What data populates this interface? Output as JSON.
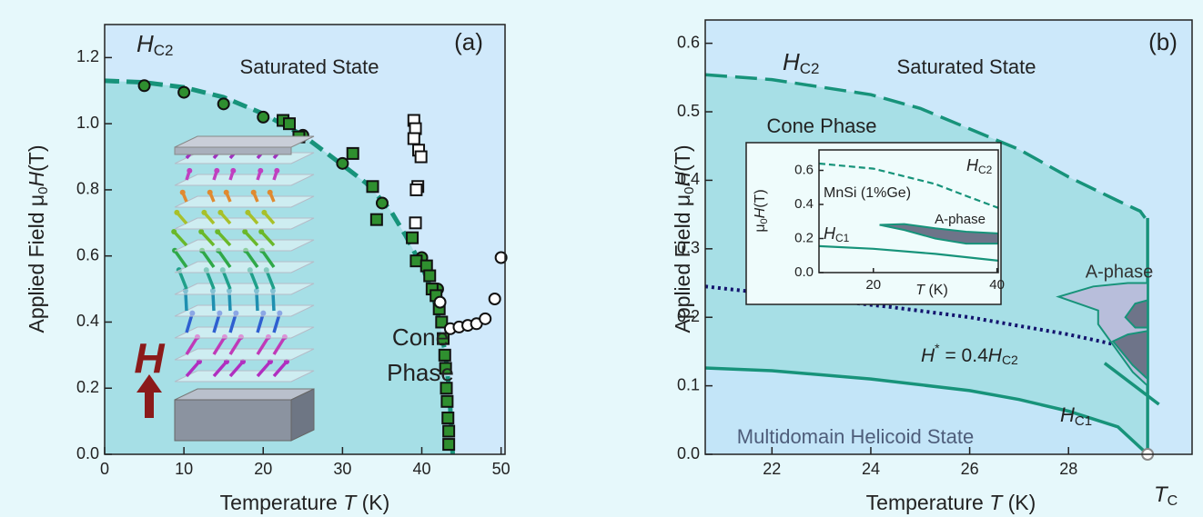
{
  "chart_data": [
    {
      "type": "scatter",
      "panel_label": "(a)",
      "background": "#d0e9fb",
      "x_label": {
        "text": "Temperature ",
        "var": "T",
        "unit": " (K)"
      },
      "y_label": {
        "text": "Applied Field μ",
        "sub": "0",
        "var": "H",
        "unit": "(T)"
      },
      "xlim": [
        0,
        50.5
      ],
      "ylim": [
        0,
        1.3
      ],
      "xticks": [
        0,
        10,
        20,
        30,
        40,
        50
      ],
      "yticks": [
        {
          "value": 0,
          "label": "0.0"
        },
        0.2,
        0.4,
        0.6,
        0.8,
        {
          "value": 1,
          "label": "1.0"
        },
        1.2
      ],
      "annotations": {
        "hc2": {
          "var": "H",
          "sub": "C2"
        },
        "saturated": "Saturated State",
        "cone_1": "Cone",
        "cone_2": "Phase",
        "field": "H"
      },
      "series": [
        {
          "type": "line",
          "style": "dashed",
          "color": "#17937a",
          "fill": "#a6dfe6",
          "x": [
            0,
            5,
            10,
            15,
            20,
            25,
            30,
            33,
            36,
            38,
            40,
            41,
            42,
            43,
            43.5,
            43.8,
            43.9
          ],
          "values": [
            1.13,
            1.125,
            1.11,
            1.08,
            1.03,
            0.965,
            0.875,
            0.82,
            0.74,
            0.66,
            0.57,
            0.51,
            0.43,
            0.3,
            0.18,
            0.05,
            0
          ]
        },
        {
          "type": "scatter",
          "marker": "circle",
          "color": "#2f8f2f",
          "x": [
            5,
            10,
            15,
            20,
            25,
            30,
            35,
            40,
            42
          ],
          "values": [
            1.115,
            1.095,
            1.06,
            1.02,
            0.965,
            0.88,
            0.76,
            0.595,
            0.5
          ]
        },
        {
          "type": "scatter",
          "marker": "square",
          "color": "#2f8f2f",
          "x": [
            22.5,
            23.3,
            24.5,
            31.3,
            33.8,
            34.3,
            38.8,
            39.3,
            40.6,
            41.0,
            41.3,
            41.8,
            42.2,
            42.5,
            42.7,
            42.9,
            43.0,
            43.1,
            43.2,
            43.3,
            43.4,
            43.4
          ],
          "values": [
            1.01,
            1.0,
            0.96,
            0.91,
            0.81,
            0.71,
            0.655,
            0.585,
            0.57,
            0.54,
            0.5,
            0.48,
            0.44,
            0.4,
            0.35,
            0.3,
            0.26,
            0.2,
            0.16,
            0.11,
            0.07,
            0.03
          ]
        },
        {
          "type": "scatter",
          "marker": "square",
          "color": "#ffffff",
          "x": [
            39.0,
            39.2,
            39.0,
            39.6,
            39.9,
            39.5,
            39.3,
            39.2
          ],
          "values": [
            1.01,
            0.985,
            0.955,
            0.92,
            0.9,
            0.81,
            0.8,
            0.7
          ]
        },
        {
          "type": "scatter",
          "marker": "circle",
          "color": "#ffffff",
          "x": [
            42.3,
            43.6,
            44.7,
            45.8,
            46.9,
            48.0,
            49.2,
            50.0
          ],
          "values": [
            0.46,
            0.38,
            0.385,
            0.39,
            0.395,
            0.41,
            0.47,
            0.595
          ]
        }
      ]
    },
    {
      "type": "line",
      "panel_label": "(b)",
      "background": "#cce8fa",
      "x_label": {
        "text": "Temperature ",
        "var": "T",
        "unit": " (K)"
      },
      "y_label": {
        "text": "Applied Field μ",
        "sub": "0",
        "var": "H",
        "unit": "(T)"
      },
      "xlim": [
        20.65,
        30.5
      ],
      "ylim": [
        0,
        0.634
      ],
      "xticks": [
        22,
        24,
        26,
        28
      ],
      "yticks": [
        {
          "value": 0,
          "label": "0.0"
        },
        0.1,
        0.2,
        0.3,
        0.4,
        0.5,
        0.6
      ],
      "annotations": {
        "hc2": {
          "var": "H",
          "sub": "C2"
        },
        "saturated": "Saturated State",
        "cone": "Cone Phase",
        "a_phase": "A-phase",
        "hstar": {
          "var": "H",
          "sup": "*",
          "eq": " = 0.4",
          "var2": "H",
          "sub": "C2"
        },
        "hc1": {
          "var": "H",
          "sub": "C1"
        },
        "multidomain": "Multidomain Helicoid State",
        "tc": {
          "var": "T",
          "sub": "C"
        }
      },
      "series": [
        {
          "type": "line",
          "style": "dashed",
          "color": "#17937a",
          "fill": "#a7dfe6",
          "x": [
            20.65,
            22,
            24,
            25,
            26,
            27,
            28,
            29,
            29.45,
            29.55
          ],
          "values": [
            0.554,
            0.547,
            0.525,
            0.505,
            0.475,
            0.445,
            0.405,
            0.37,
            0.355,
            0.345
          ]
        },
        {
          "type": "line",
          "style": "solid",
          "color": "#17937a",
          "fill": "#c3e5f8",
          "x": [
            20.65,
            22,
            24,
            26,
            27,
            28,
            29,
            29.6
          ],
          "values": [
            0.126,
            0.122,
            0.11,
            0.093,
            0.08,
            0.063,
            0.04,
            0
          ]
        },
        {
          "type": "line",
          "style": "solid",
          "color": "#17937a",
          "x": [
            29.6,
            29.6
          ],
          "values": [
            0.345,
            0
          ]
        },
        {
          "type": "line",
          "style": "dotted",
          "color": "#14146e",
          "x": [
            20.65,
            24.4,
            26,
            28,
            29.6
          ],
          "values": [
            0.245,
            0.215,
            0.2,
            0.175,
            0.15
          ]
        },
        {
          "type": "area",
          "color": "#17937a",
          "fill": "#b8bedb",
          "x": [
            27.8,
            28.5,
            29.2,
            29.6,
            29.6,
            29.3,
            28.9,
            28.6,
            28.6
          ],
          "values": [
            0.23,
            0.245,
            0.25,
            0.25,
            0.1,
            0.12,
            0.16,
            0.19,
            0.21
          ]
        },
        {
          "type": "area",
          "color": "#17937a",
          "fill": "#6e7489",
          "x": [
            29.15,
            29.35,
            29.6,
            29.6,
            29.35
          ],
          "values": [
            0.2,
            0.22,
            0.225,
            0.185,
            0.185
          ]
        },
        {
          "type": "area",
          "color": "#17937a",
          "fill": "#6e7489",
          "x": [
            28.9,
            29.2,
            29.6,
            29.6,
            29.3
          ],
          "values": [
            0.165,
            0.175,
            0.18,
            0.11,
            0.13
          ]
        },
        {
          "type": "line",
          "style": "solid",
          "color": "#17937a",
          "x": [
            28.73,
            29.83
          ],
          "values": [
            0.133,
            0.073
          ]
        },
        {
          "type": "scatter",
          "marker": "circle",
          "color": "#ffffff",
          "stroke": "#888888",
          "x": [
            29.6
          ],
          "values": [
            0
          ]
        }
      ]
    },
    {
      "type": "line",
      "inset": true,
      "background": "#effcfc",
      "x_label": {
        "var": "T",
        "unit": " (K)"
      },
      "y_label": {
        "text": "μ",
        "sub": "0",
        "var": "H",
        "unit": "(T)"
      },
      "xlim": [
        11.2,
        40.2
      ],
      "ylim": [
        0,
        0.72
      ],
      "xticks": [
        20,
        40
      ],
      "yticks": [
        {
          "value": 0,
          "label": "0.0"
        },
        0.2,
        0.4,
        0.6
      ],
      "annotations": {
        "material": "MnSi (1%Ge)",
        "hc2": {
          "var": "H",
          "sub": "C2"
        },
        "a_phase": "A-phase",
        "hc1": {
          "var": "H",
          "sub": "C1"
        }
      },
      "series": [
        {
          "type": "line",
          "style": "dashed",
          "color": "#17937a",
          "x": [
            11.2,
            20,
            30,
            35,
            40.2
          ],
          "values": [
            0.64,
            0.61,
            0.52,
            0.45,
            0.38
          ]
        },
        {
          "type": "line",
          "style": "solid",
          "color": "#17937a",
          "x": [
            11.2,
            20,
            30,
            40.2
          ],
          "values": [
            0.155,
            0.14,
            0.11,
            0.07
          ]
        },
        {
          "type": "area",
          "color": "#17937a",
          "fill": "#6e7489",
          "x": [
            21,
            25,
            30,
            35,
            40.2,
            40.2,
            35,
            30,
            25
          ],
          "values": [
            0.28,
            0.285,
            0.26,
            0.24,
            0.23,
            0.17,
            0.17,
            0.2,
            0.25
          ]
        }
      ]
    }
  ]
}
